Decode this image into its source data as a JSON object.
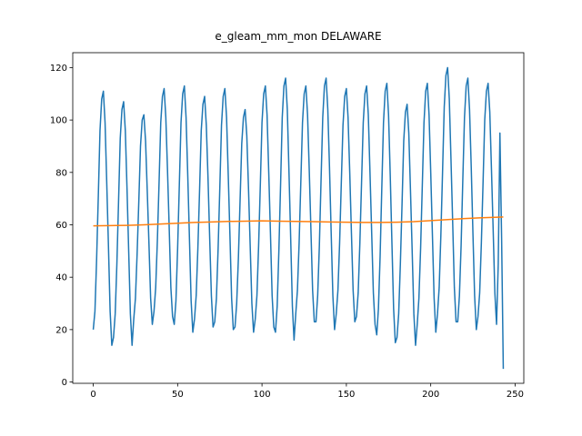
{
  "chart_data": {
    "type": "line",
    "title": "e_gleam_mm_mon DELAWARE",
    "xlim": [
      -12.15,
      255.15
    ],
    "xticks": [
      0,
      50,
      100,
      150,
      200,
      250
    ],
    "ylim": [
      -0.5,
      125.7
    ],
    "yticks": [
      0,
      20,
      40,
      60,
      80,
      100,
      120
    ],
    "series": [
      {
        "color": "#1f77b4",
        "values": [
          20,
          27,
          47,
          71,
          96,
          108,
          111,
          99,
          76,
          52,
          27,
          14,
          17,
          26,
          45,
          69,
          93,
          104,
          107,
          96,
          74,
          50,
          26,
          14,
          24,
          32,
          49,
          69,
          90,
          100,
          102,
          92,
          73,
          53,
          32,
          22,
          27,
          36,
          54,
          76,
          99,
          109,
          112,
          101,
          81,
          59,
          36,
          25,
          22,
          31,
          51,
          75,
          99,
          110,
          113,
          101,
          79,
          55,
          31,
          19,
          24,
          33,
          51,
          73,
          96,
          106,
          109,
          98,
          78,
          55,
          33,
          21,
          23,
          32,
          51,
          74,
          98,
          109,
          112,
          101,
          79,
          56,
          32,
          20,
          21,
          30,
          47,
          69,
          91,
          101,
          104,
          94,
          74,
          52,
          30,
          19,
          24,
          33,
          52,
          75,
          99,
          110,
          113,
          102,
          80,
          57,
          33,
          21,
          19,
          29,
          50,
          75,
          101,
          113,
          116,
          104,
          80,
          55,
          29,
          16,
          26,
          35,
          53,
          76,
          99,
          110,
          113,
          102,
          81,
          58,
          35,
          23,
          23,
          33,
          52,
          77,
          101,
          113,
          116,
          104,
          82,
          57,
          33,
          20,
          26,
          35,
          53,
          76,
          98,
          109,
          112,
          101,
          80,
          57,
          35,
          23,
          25,
          34,
          53,
          76,
          99,
          110,
          113,
          102,
          80,
          57,
          34,
          22,
          18,
          28,
          48,
          74,
          99,
          111,
          114,
          102,
          79,
          53,
          28,
          15,
          17,
          26,
          45,
          68,
          92,
          103,
          106,
          95,
          73,
          50,
          26,
          14,
          22,
          32,
          51,
          75,
          99,
          111,
          114,
          102,
          80,
          56,
          32,
          19,
          26,
          36,
          56,
          80,
          105,
          117,
          120,
          108,
          85,
          61,
          36,
          23,
          23,
          33,
          52,
          77,
          101,
          113,
          116,
          104,
          82,
          57,
          33,
          20,
          25,
          34,
          53,
          76,
          100,
          111,
          114,
          103,
          81,
          58,
          34,
          22,
          45,
          95,
          55,
          5
        ]
      },
      {
        "color": "#ff7f0e",
        "x": [
          0,
          10,
          20,
          30,
          40,
          50,
          60,
          70,
          80,
          90,
          100,
          110,
          120,
          130,
          140,
          150,
          160,
          170,
          180,
          190,
          200,
          210,
          220,
          230,
          240,
          243
        ],
        "values": [
          59.6,
          59.7,
          59.8,
          60.0,
          60.3,
          60.6,
          60.9,
          61.1,
          61.3,
          61.4,
          61.5,
          61.4,
          61.3,
          61.2,
          61.1,
          61.0,
          60.9,
          60.9,
          61.0,
          61.2,
          61.6,
          62.0,
          62.4,
          62.7,
          62.9,
          63.0
        ]
      }
    ]
  }
}
